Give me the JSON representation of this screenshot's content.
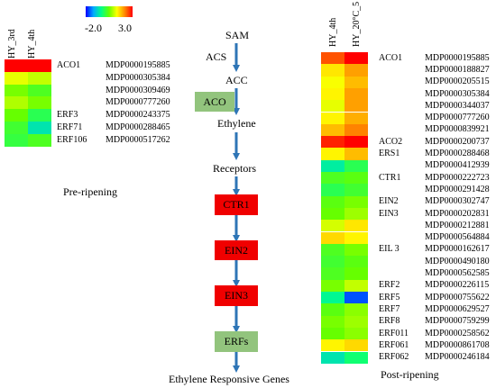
{
  "colors": {
    "scale": [
      "#0000ff",
      "#00aaff",
      "#00ff88",
      "#66ff00",
      "#ffff00",
      "#ff8800",
      "#ff0000"
    ],
    "red_box": "#f00000",
    "green_box": "#92c47d",
    "arrow": "#2e75b6"
  },
  "legend": {
    "min": "-2.0",
    "max": "3.0"
  },
  "pre": {
    "headers": [
      "HY_3rd",
      "HY_4th"
    ],
    "caption": "Pre-ripening",
    "rows": [
      {
        "gene": "ACO1",
        "id": "MDP0000195885",
        "v": [
          3.0,
          3.0
        ]
      },
      {
        "gene": "",
        "id": "MDP0000305384",
        "v": [
          1.2,
          1.0
        ]
      },
      {
        "gene": "",
        "id": "MDP0000309469",
        "v": [
          0.6,
          0.3
        ]
      },
      {
        "gene": "",
        "id": "MDP0000777260",
        "v": [
          0.9,
          0.6
        ]
      },
      {
        "gene": "ERF3",
        "id": "MDP0000243375",
        "v": [
          0.5,
          0.0
        ]
      },
      {
        "gene": "ERF71",
        "id": "MDP0000288465",
        "v": [
          0.2,
          -0.6
        ]
      },
      {
        "gene": "ERF106",
        "id": "MDP0000517262",
        "v": [
          0.1,
          0.3
        ]
      }
    ]
  },
  "pathway": {
    "nodes": [
      "SAM",
      "ACC",
      "Ethylene",
      "Receptors"
    ],
    "enzyme": "ACS",
    "aco": "ACO",
    "boxes": [
      "CTR1",
      "EIN2",
      "EIN3",
      "ERFs"
    ],
    "end": "Ethylene Responsive Genes"
  },
  "post": {
    "headers": [
      "HY_4th",
      "HY_20°C_5"
    ],
    "caption": "Post-ripening",
    "rows": [
      {
        "gene": "ACO1",
        "id": "MDP0000195885",
        "v": [
          2.5,
          3.0
        ]
      },
      {
        "gene": "",
        "id": "MDP0000188827",
        "v": [
          1.5,
          2.0
        ]
      },
      {
        "gene": "",
        "id": "MDP0000205515",
        "v": [
          1.3,
          1.8
        ]
      },
      {
        "gene": "",
        "id": "MDP0000305384",
        "v": [
          1.4,
          2.0
        ]
      },
      {
        "gene": "",
        "id": "MDP0000344037",
        "v": [
          1.2,
          2.0
        ]
      },
      {
        "gene": "",
        "id": "MDP0000777260",
        "v": [
          1.4,
          1.9
        ]
      },
      {
        "gene": "",
        "id": "MDP0000839921",
        "v": [
          1.8,
          2.2
        ]
      },
      {
        "gene": "ACO2",
        "id": "MDP0000200737",
        "v": [
          2.8,
          3.0
        ]
      },
      {
        "gene": "ERS1",
        "id": "MDP0000288468",
        "v": [
          1.4,
          1.8
        ]
      },
      {
        "gene": "",
        "id": "MDP0000412939",
        "v": [
          -0.5,
          0.0
        ]
      },
      {
        "gene": "CTR1",
        "id": "MDP0000222723",
        "v": [
          0.3,
          0.4
        ]
      },
      {
        "gene": "",
        "id": "MDP0000291428",
        "v": [
          0.0,
          0.2
        ]
      },
      {
        "gene": "EIN2",
        "id": "MDP0000302747",
        "v": [
          0.4,
          0.6
        ]
      },
      {
        "gene": "EIN3",
        "id": "MDP0000202831",
        "v": [
          0.5,
          0.8
        ]
      },
      {
        "gene": "",
        "id": "MDP0000212881",
        "v": [
          1.1,
          1.5
        ]
      },
      {
        "gene": "",
        "id": "MDP0000564884",
        "v": [
          1.6,
          1.4
        ]
      },
      {
        "gene": "EIL 3",
        "id": "MDP0000162617",
        "v": [
          0.3,
          0.6
        ]
      },
      {
        "gene": "",
        "id": "MDP0000490180",
        "v": [
          0.2,
          0.4
        ]
      },
      {
        "gene": "",
        "id": "MDP0000562585",
        "v": [
          0.3,
          0.5
        ]
      },
      {
        "gene": "ERF2",
        "id": "MDP0000226115",
        "v": [
          0.6,
          1.0
        ]
      },
      {
        "gene": "ERF5",
        "id": "MDP0000755622",
        "v": [
          -0.4,
          -1.6
        ]
      },
      {
        "gene": "ERF7",
        "id": "MDP0000629527",
        "v": [
          0.4,
          0.7
        ]
      },
      {
        "gene": "ERF8",
        "id": "MDP0000759299",
        "v": [
          0.6,
          0.8
        ]
      },
      {
        "gene": "ERF011",
        "id": "MDP0000258562",
        "v": [
          0.5,
          0.7
        ]
      },
      {
        "gene": "ERF061",
        "id": "MDP0000861708",
        "v": [
          1.4,
          1.6
        ]
      },
      {
        "gene": "ERF062",
        "id": "MDP0000246184",
        "v": [
          -0.6,
          -0.2
        ]
      }
    ]
  }
}
